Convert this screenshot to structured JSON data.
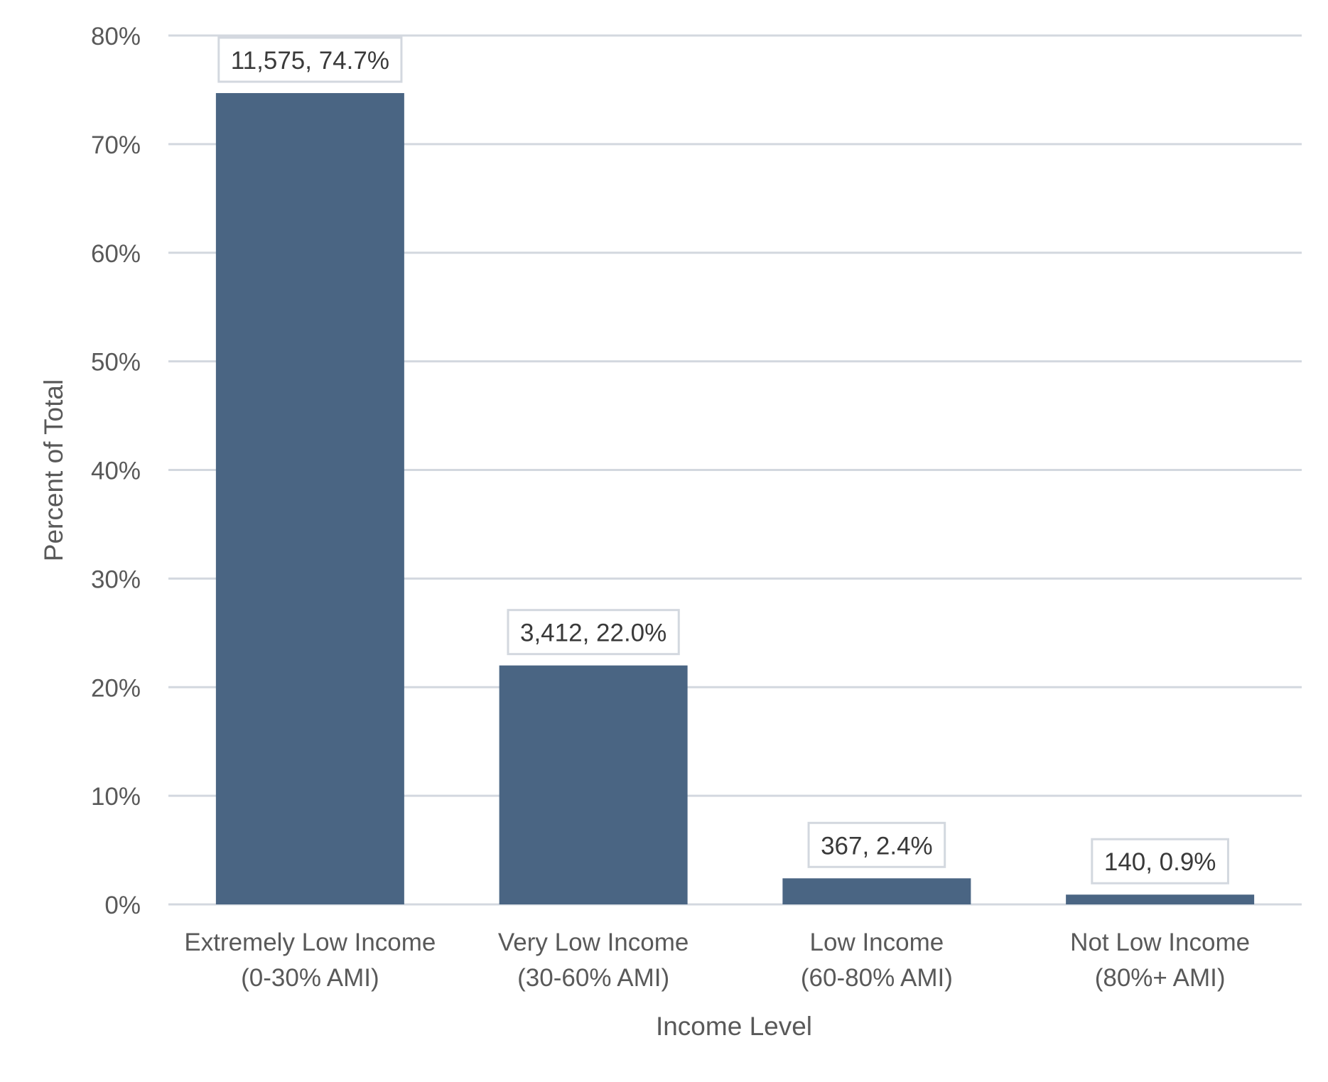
{
  "chart_data": {
    "type": "bar",
    "title": "",
    "xlabel": "Income Level",
    "ylabel": "Percent of Total",
    "categories": [
      [
        "Extremely Low Income",
        "(0-30% AMI)"
      ],
      [
        "Very Low Income",
        "(30-60% AMI)"
      ],
      [
        "Low Income",
        "(60-80% AMI)"
      ],
      [
        "Not Low Income",
        "(80%+ AMI)"
      ]
    ],
    "series": [
      {
        "values": [
          74.7,
          22.0,
          2.4,
          0.9
        ],
        "counts": [
          11575,
          3412,
          367,
          140
        ],
        "labels": [
          "11,575, 74.7%",
          "3,412, 22.0%",
          "367, 2.4%",
          "140, 0.9%"
        ]
      }
    ],
    "ylim": [
      0,
      80
    ],
    "yticks": [
      0,
      10,
      20,
      30,
      40,
      50,
      60,
      70,
      80
    ],
    "ytick_labels": [
      "0%",
      "10%",
      "20%",
      "30%",
      "40%",
      "50%",
      "60%",
      "70%",
      "80%"
    ],
    "grid": true,
    "legend": "none",
    "colors": {
      "bar": "#4a6583",
      "grid": "#d3d8df",
      "text": "#595959",
      "label_text": "#3a3a3a",
      "label_border": "#d3d8df"
    }
  }
}
